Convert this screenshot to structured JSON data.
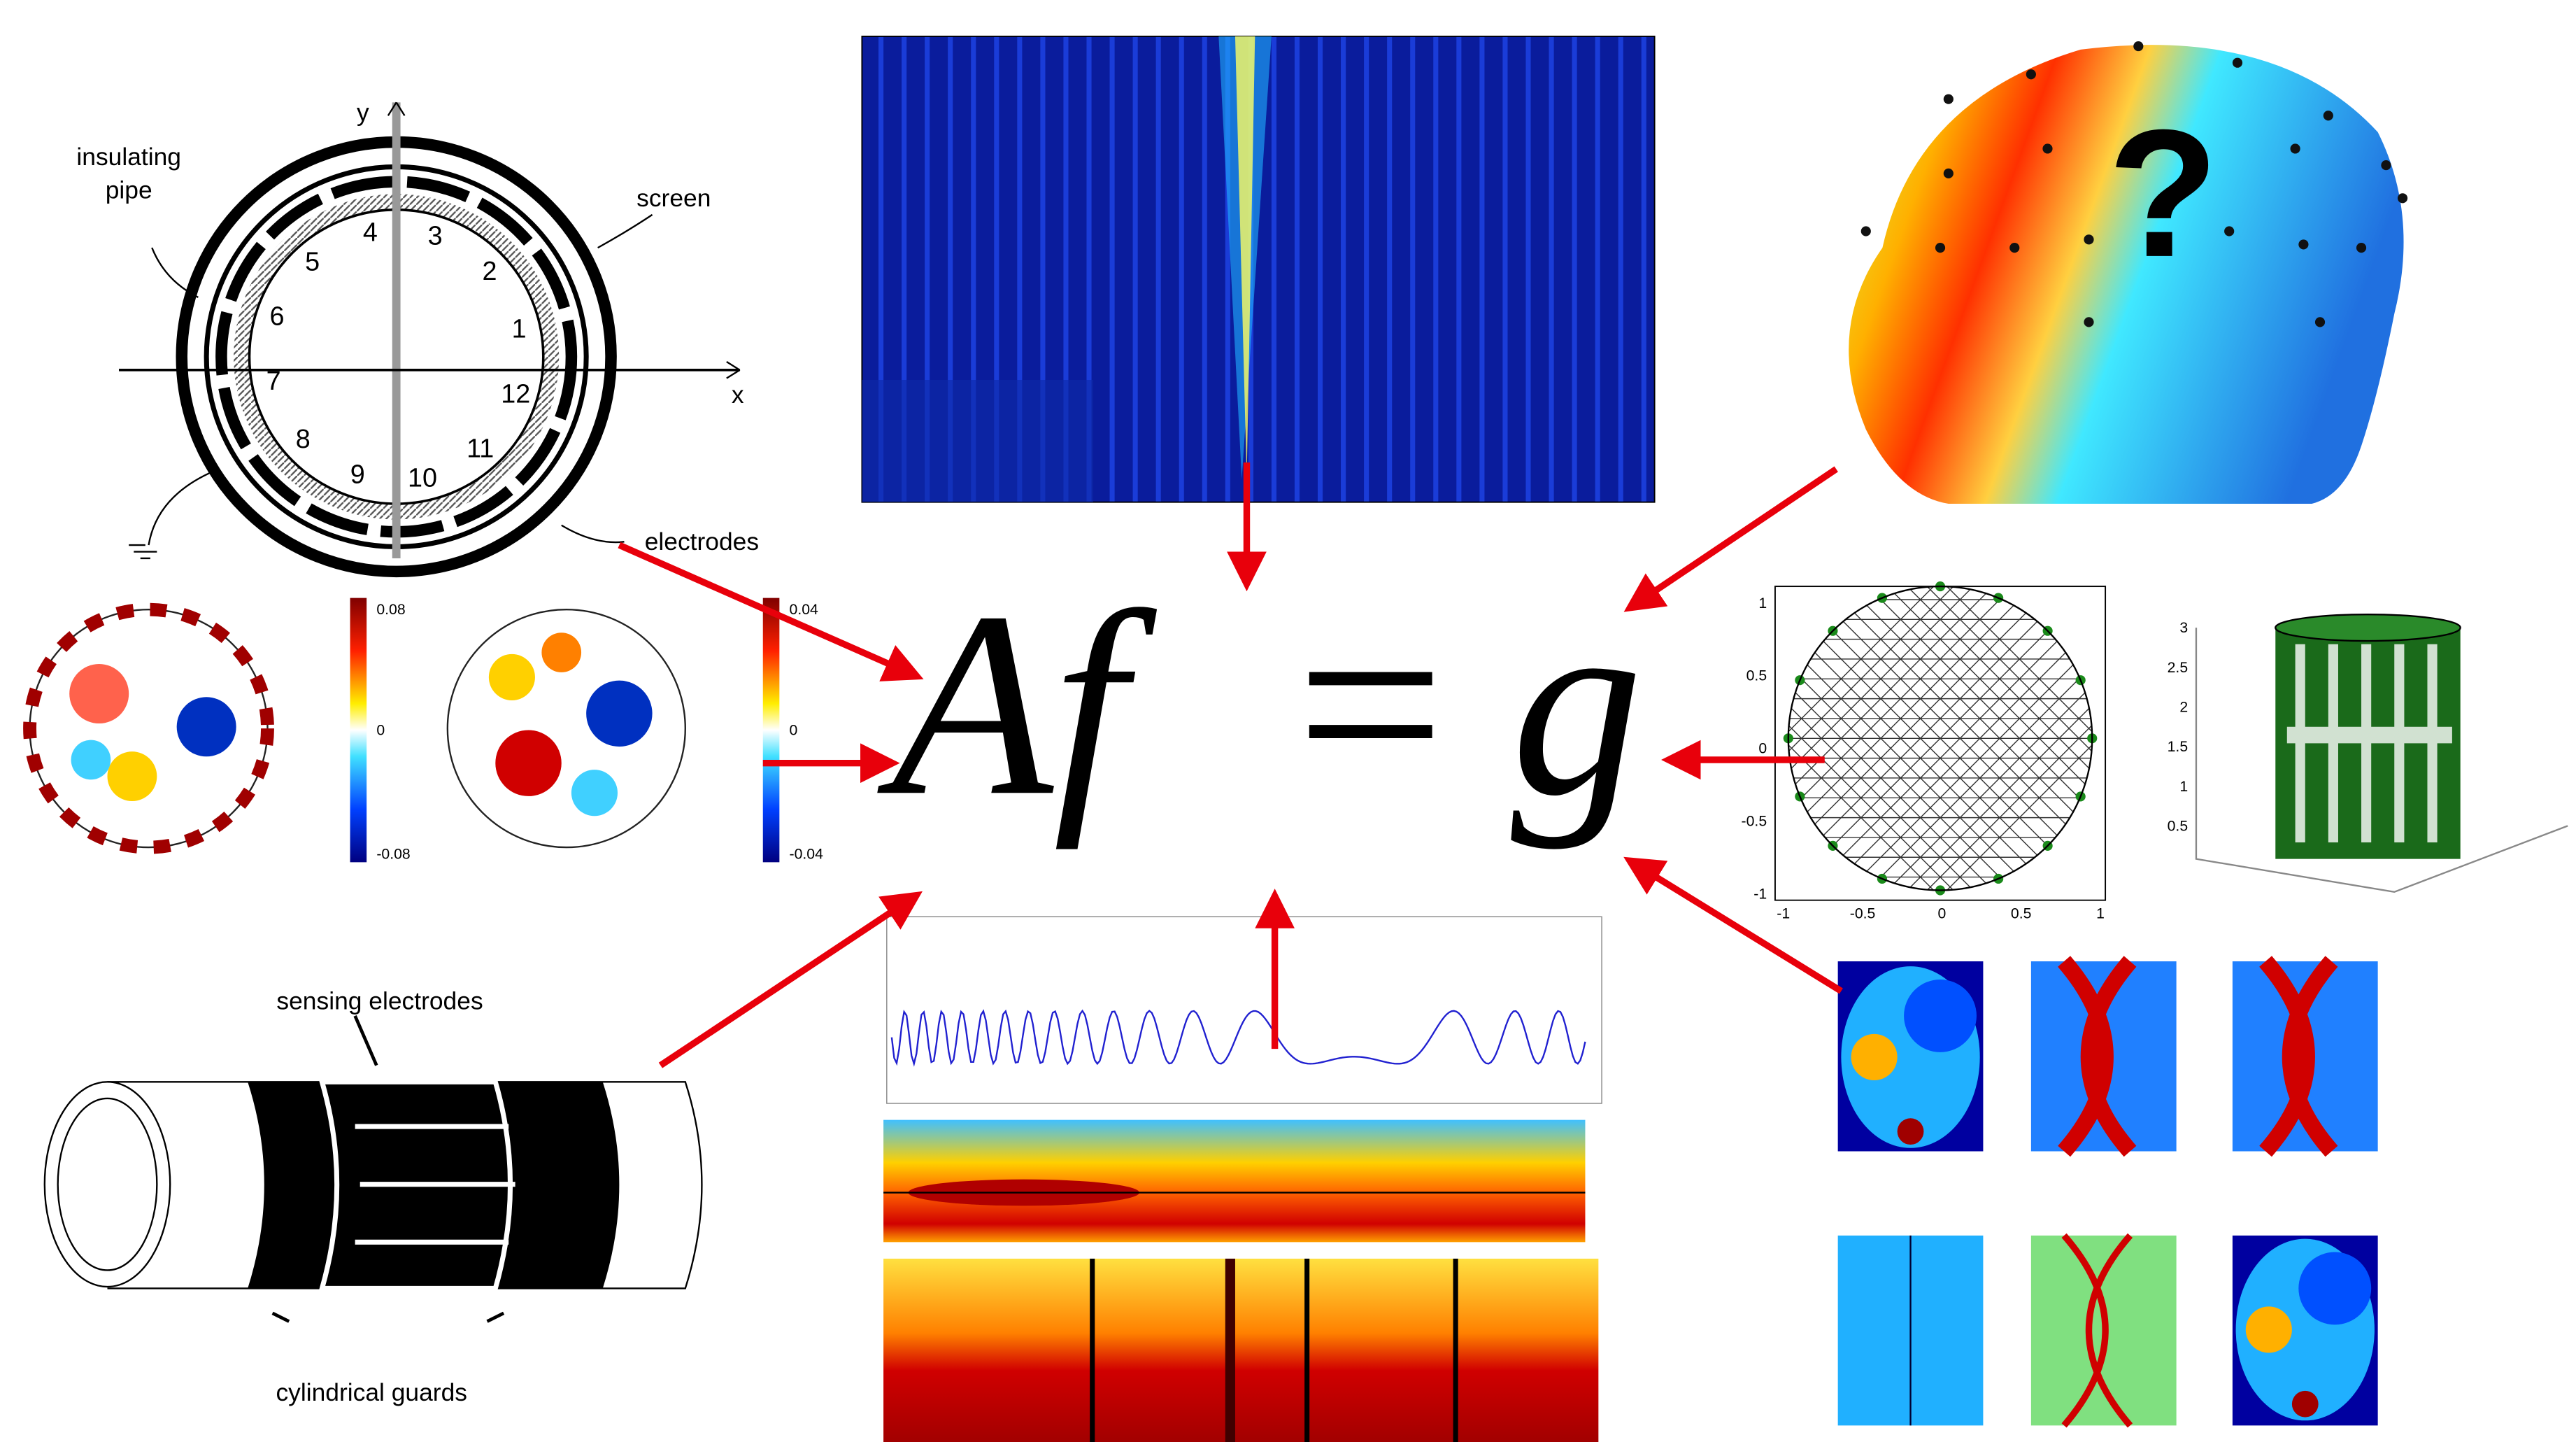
{
  "equation": {
    "lhs": "Af",
    "op": "=",
    "rhs": "g"
  },
  "pipe_diagram": {
    "axis_y": "y",
    "axis_x": "x",
    "insulating_pipe": [
      "insulating",
      "pipe"
    ],
    "screen": "screen",
    "electrodes": "electrodes",
    "electrode_numbers": [
      "1",
      "2",
      "3",
      "4",
      "5",
      "6",
      "7",
      "8",
      "9",
      "10",
      "11",
      "12"
    ]
  },
  "head": {
    "mark": "?"
  },
  "colorbars": [
    {
      "max": "0.08",
      "mid": "0",
      "min": "-0.08"
    },
    {
      "max": "0.04",
      "mid": "0",
      "min": "-0.04"
    }
  ],
  "mesh_plot": {
    "yticks": [
      "1",
      "0.5",
      "0",
      "-0.5",
      "-1"
    ],
    "xticks": [
      "-1",
      "-0.5",
      "0",
      "0.5",
      "1"
    ]
  },
  "cylinder_plot": {
    "zticks": [
      "3",
      "2.5",
      "2",
      "1.5",
      "1",
      "0.5"
    ]
  },
  "sensor_diagram": {
    "top_label": "sensing electrodes",
    "bottom_label": "cylindrical guards"
  }
}
